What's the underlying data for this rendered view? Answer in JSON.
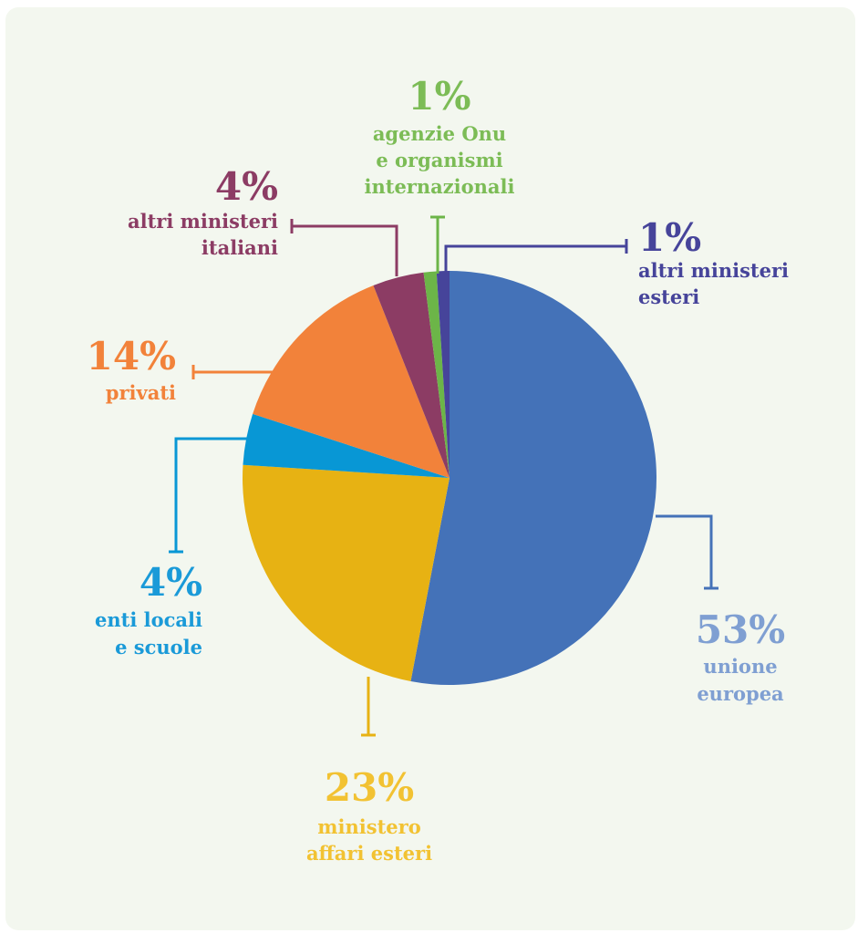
{
  "chart_data": {
    "type": "pie",
    "title": "",
    "start_angle_deg": 0,
    "direction": "clockwise",
    "slices": [
      {
        "label": "unione europea",
        "value": 53,
        "pct_text": "53%",
        "name_lines": [
          "unione",
          "europea"
        ],
        "color": "#4472b8"
      },
      {
        "label": "ministero affari esteri",
        "value": 23,
        "pct_text": "23%",
        "name_lines": [
          "ministero",
          "affari esteri"
        ],
        "color": "#e7b213"
      },
      {
        "label": "enti locali e scuole",
        "value": 4,
        "pct_text": "4%",
        "name_lines": [
          "enti locali",
          "e scuole"
        ],
        "color": "#0897d5"
      },
      {
        "label": "privati",
        "value": 14,
        "pct_text": "14%",
        "name_lines": [
          "privati"
        ],
        "color": "#f2823a"
      },
      {
        "label": "altri ministeri italiani",
        "value": 4,
        "pct_text": "4%",
        "name_lines": [
          "altri ministeri",
          "italiani"
        ],
        "color": "#8c3c64"
      },
      {
        "label": "agenzie Onu e organismi internazionali",
        "value": 1,
        "pct_text": "1%",
        "name_lines": [
          "agenzie Onu",
          "e organismi",
          "internazionali"
        ],
        "color": "#6cb548"
      },
      {
        "label": "altri ministeri esteri",
        "value": 1,
        "pct_text": "1%",
        "name_lines": [
          "altri ministeri",
          "esteri"
        ],
        "color": "#46449a"
      }
    ]
  },
  "text_colors": {
    "unione europea": "#7f9fd2",
    "ministero affari esteri": "#f2c232",
    "enti locali e scuole": "#1a9ad8",
    "privati": "#f2823a",
    "altri ministeri italiani": "#8c3c64",
    "agenzie Onu e organismi internazionali": "#7cbc56",
    "altri ministeri esteri": "#46449a"
  }
}
